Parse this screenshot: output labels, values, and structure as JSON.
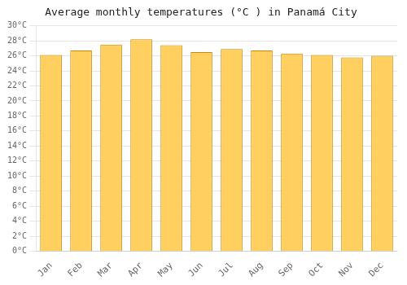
{
  "chart_data": {
    "type": "bar",
    "title": "Average monthly temperatures (°C ) in Panamá City",
    "categories": [
      "Jan",
      "Feb",
      "Mar",
      "Apr",
      "May",
      "Jun",
      "Jul",
      "Aug",
      "Sep",
      "Oct",
      "Nov",
      "Dec"
    ],
    "values": [
      26.1,
      26.7,
      27.5,
      28.2,
      27.4,
      26.5,
      26.9,
      26.7,
      26.3,
      26.1,
      25.8,
      26.0
    ],
    "color": "#FFD060",
    "ylim": [
      0,
      30
    ],
    "yticks": [
      {
        "value": 0,
        "label": "0°C"
      },
      {
        "value": 2,
        "label": "2°C"
      },
      {
        "value": 4,
        "label": "4°C"
      },
      {
        "value": 6,
        "label": "6°C"
      },
      {
        "value": 8,
        "label": "8°C"
      },
      {
        "value": 10,
        "label": "10°C"
      },
      {
        "value": 12,
        "label": "12°C"
      },
      {
        "value": 14,
        "label": "14°C"
      },
      {
        "value": 16,
        "label": "16°C"
      },
      {
        "value": 18,
        "label": "18°C"
      },
      {
        "value": 20,
        "label": "20°C"
      },
      {
        "value": 22,
        "label": "22°C"
      },
      {
        "value": 24,
        "label": "24°C"
      },
      {
        "value": 26,
        "label": "26°C"
      },
      {
        "value": 28,
        "label": "28°C"
      },
      {
        "value": 30,
        "label": "30°C"
      }
    ],
    "grid": true
  }
}
